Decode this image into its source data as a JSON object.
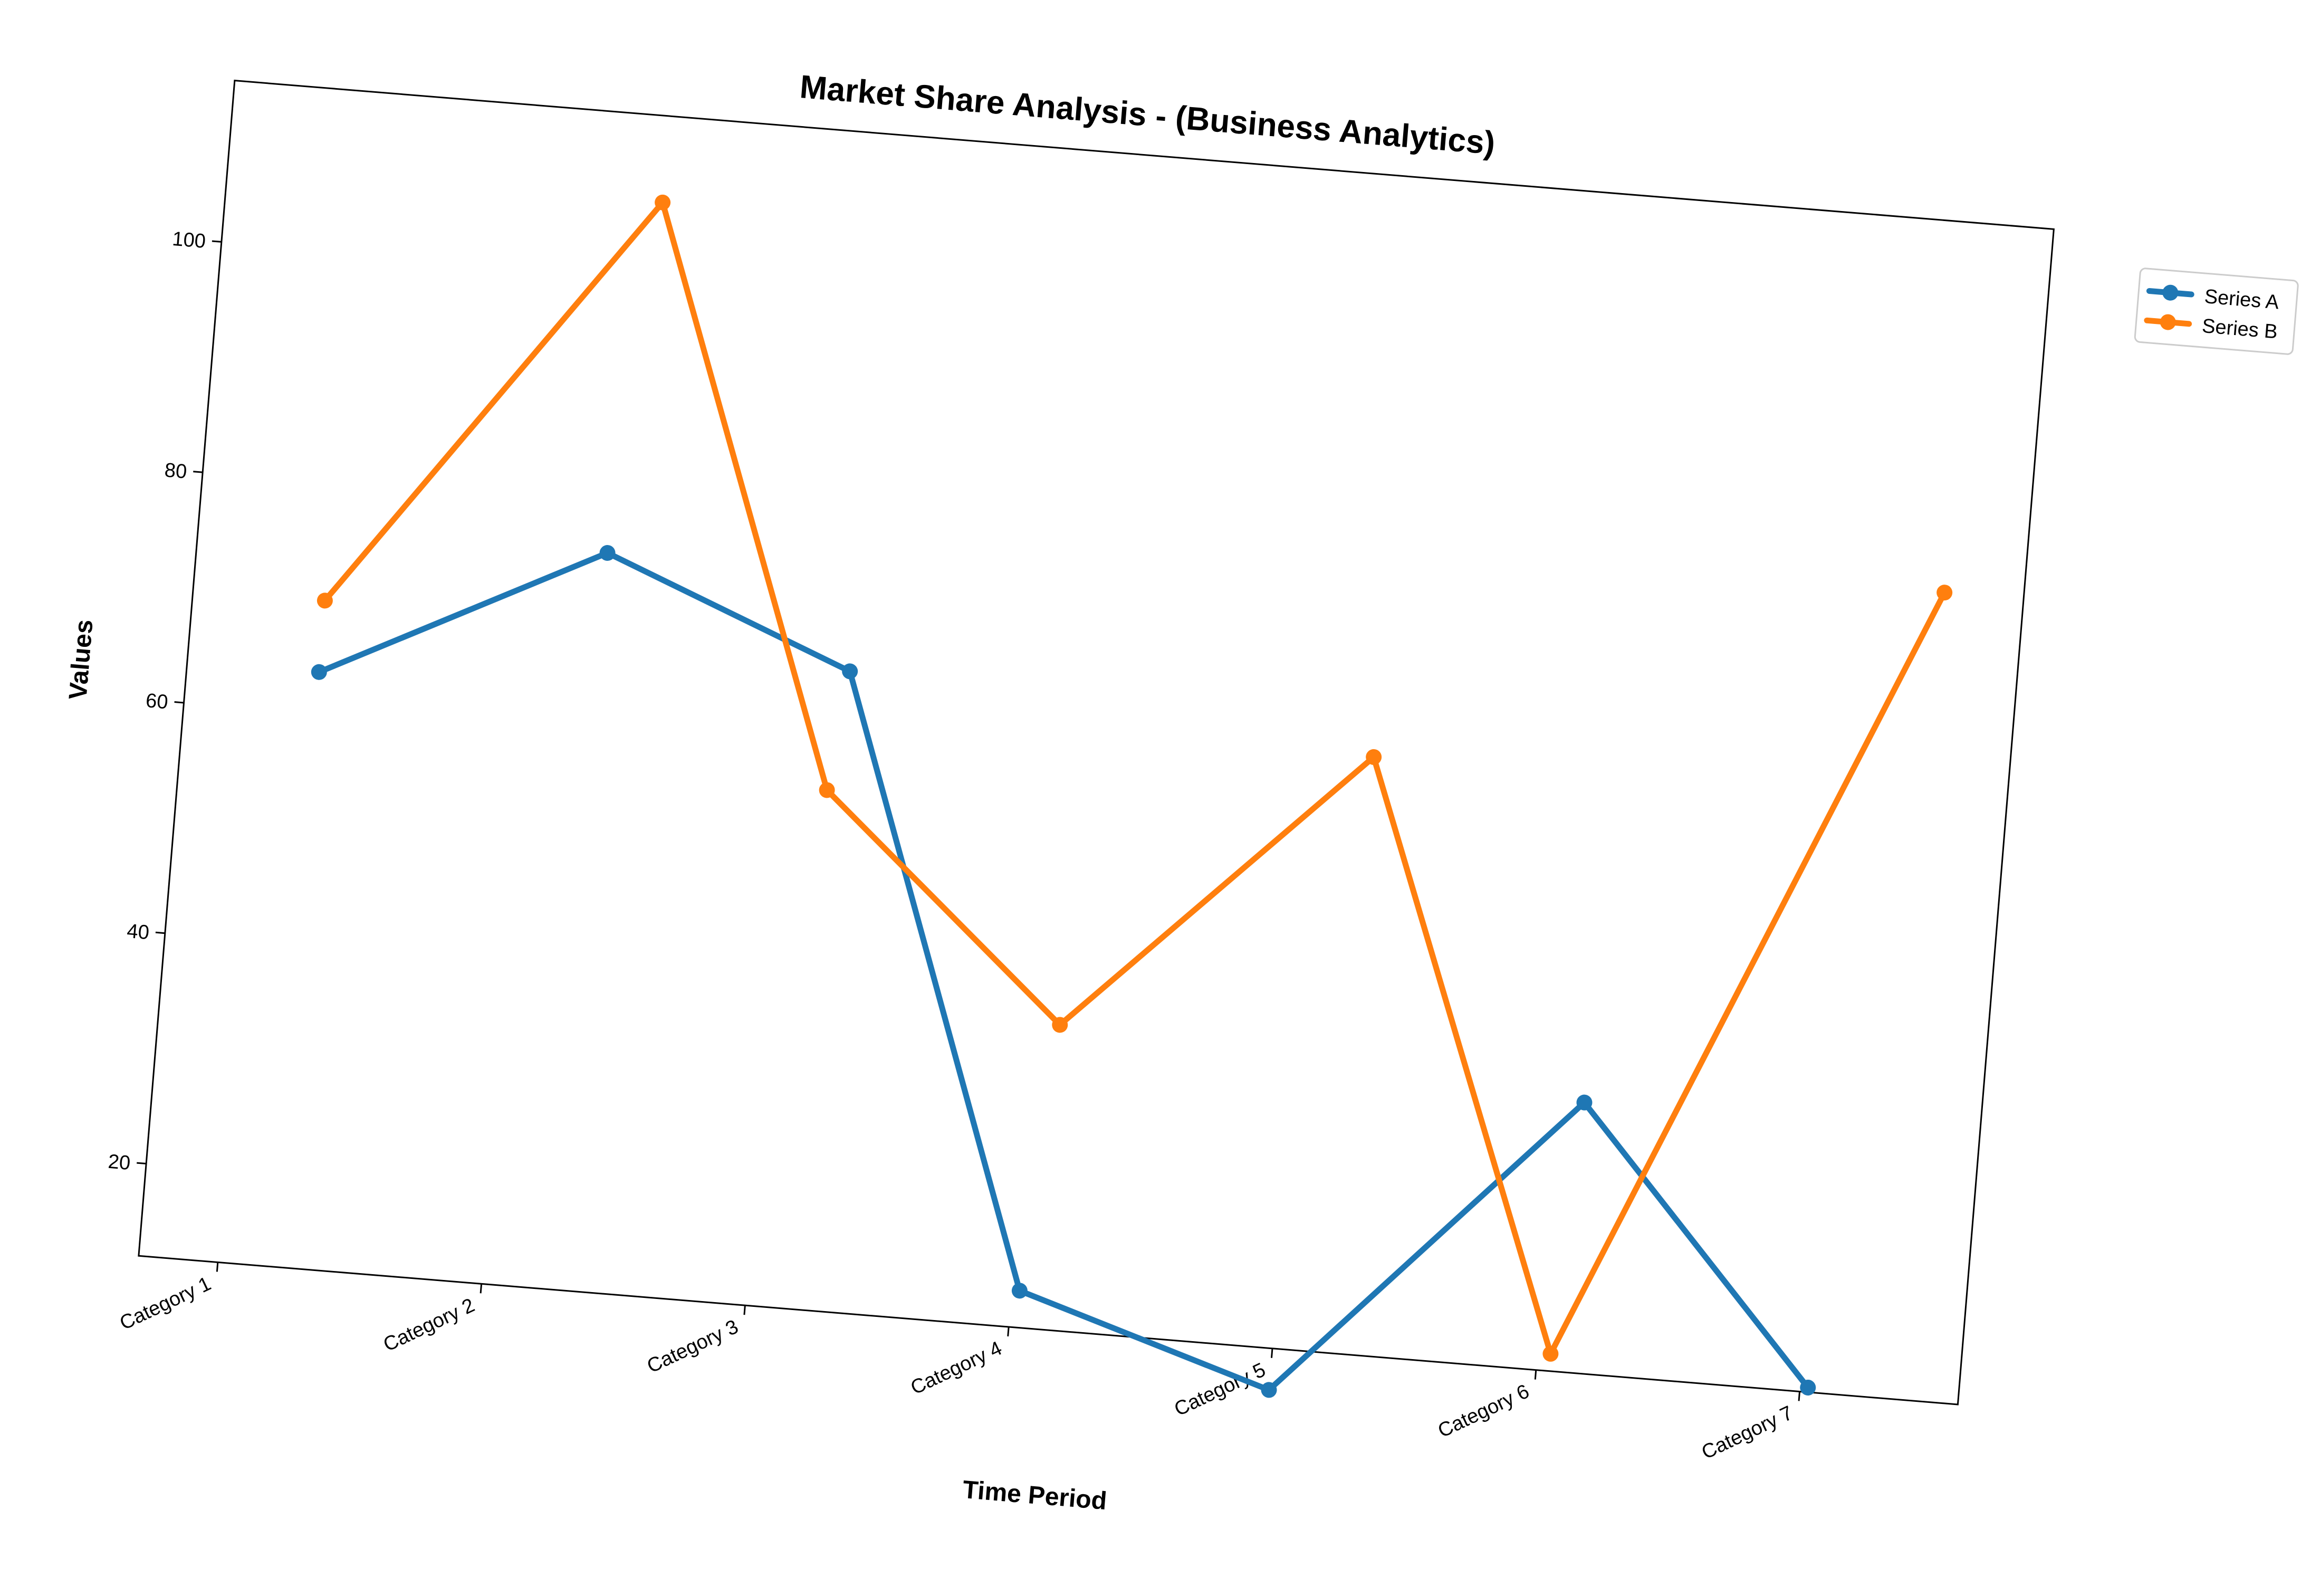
{
  "chart_data": {
    "type": "line",
    "title": "Market Share Analysis - (Business Analytics)",
    "xlabel": "Time Period",
    "ylabel": "Values",
    "categories": [
      "Category 1",
      "Category 2",
      "Category 3",
      "Category 4",
      "Category 5",
      "Category 6",
      "Category 7"
    ],
    "ylim": [
      12,
      114
    ],
    "yticks": [
      20,
      40,
      60,
      80,
      100
    ],
    "grid": false,
    "legend_position": "outside-top-right",
    "series": [
      {
        "name": "Series A",
        "color": "#1f77b4",
        "values": [
          [
            0.2,
            63.6
          ],
          [
            1.25,
            75.9
          ],
          [
            2.2,
            67.4
          ],
          [
            3.03,
            15.2
          ],
          [
            4.0,
            8.4
          ],
          [
            5.1,
            35.4
          ],
          [
            6.03,
            12.4
          ]
        ]
      },
      {
        "name": "Series B",
        "color": "#ff7f0e",
        "values": [
          [
            0.2,
            69.8
          ],
          [
            1.35,
            106.5
          ],
          [
            2.15,
            57.0
          ],
          [
            3.1,
            38.4
          ],
          [
            4.2,
            63.7
          ],
          [
            5.05,
            13.5
          ],
          [
            6.3,
            81.9
          ]
        ]
      }
    ]
  }
}
